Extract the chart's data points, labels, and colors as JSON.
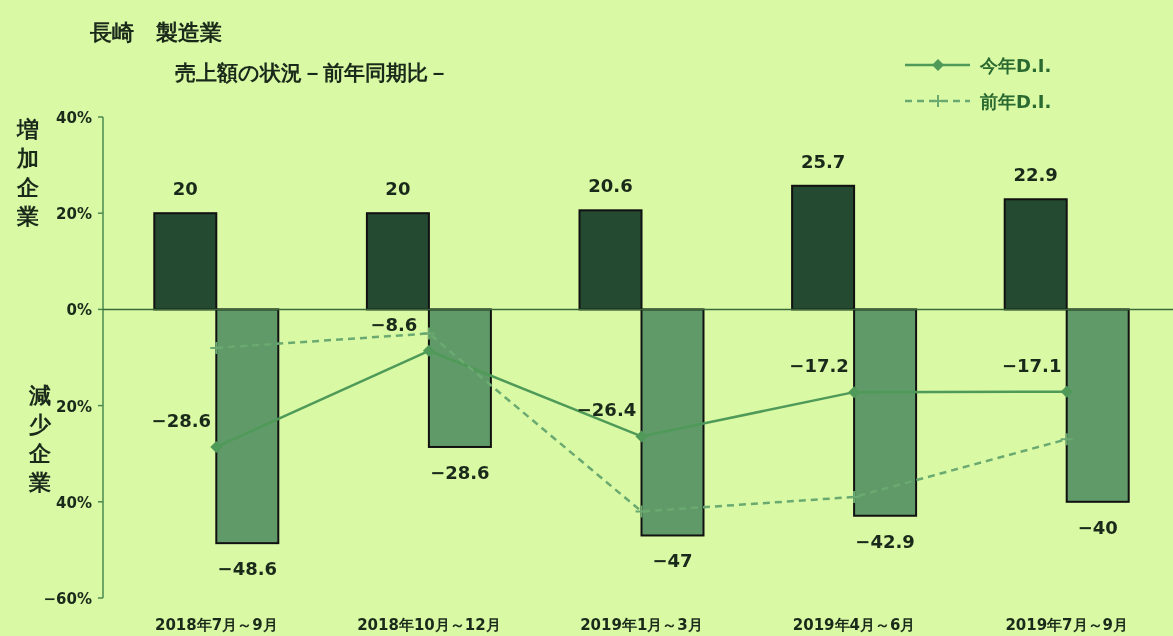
{
  "chart_data": {
    "type": "bar",
    "title": "長崎　製造業",
    "subtitle": "売上額の状況－前年同期比－",
    "ylabel": "増加企業",
    "annotations": [
      "減少企業"
    ],
    "categories": [
      "2018年7月～9月",
      "2018年10月～12月",
      "2019年1月～3月",
      "2019年4月～6月",
      "2019年7月～9月"
    ],
    "series": [
      {
        "color": "#254a32",
        "values": [
          20,
          20,
          20.6,
          25.7,
          22.9
        ],
        "value_labels": [
          "20",
          "20",
          "20.6",
          "25.7",
          "22.9"
        ]
      },
      {
        "color": "#5f9a68",
        "values": [
          -48.6,
          -28.6,
          -47,
          -42.9,
          -40
        ],
        "value_labels": [
          "−48.6",
          "−28.6",
          "−47",
          "−42.9",
          "−40"
        ]
      },
      {
        "type": "line",
        "name": "今年D.I.",
        "color": "#4f9a58",
        "marker": "diamond",
        "line_style": "solid",
        "values": [
          -28.6,
          -8.6,
          -26.4,
          -17.2,
          -17.1
        ],
        "value_labels": [
          "−28.6",
          "−8.6",
          "−26.4",
          "−17.2",
          "−17.1"
        ]
      },
      {
        "type": "line",
        "name": "前年D.I.",
        "color": "#6aaa70",
        "marker": "cross",
        "line_style": "dashed",
        "values": [
          -8,
          -5,
          -42,
          -39,
          -27
        ]
      }
    ],
    "ylim": [
      -60,
      40
    ],
    "yticks": [
      {
        "value": 40,
        "label": "40%"
      },
      {
        "value": 20,
        "label": "20%"
      },
      {
        "value": 0,
        "label": "0%"
      },
      {
        "value": -20,
        "label": "20%"
      },
      {
        "value": -40,
        "label": "40%"
      },
      {
        "value": -60,
        "label": "−60%"
      }
    ],
    "ref_lines": [
      {
        "axis": "y",
        "value": 0,
        "color": "#3a6a3a"
      }
    ],
    "legend": "top right",
    "grid": false
  }
}
